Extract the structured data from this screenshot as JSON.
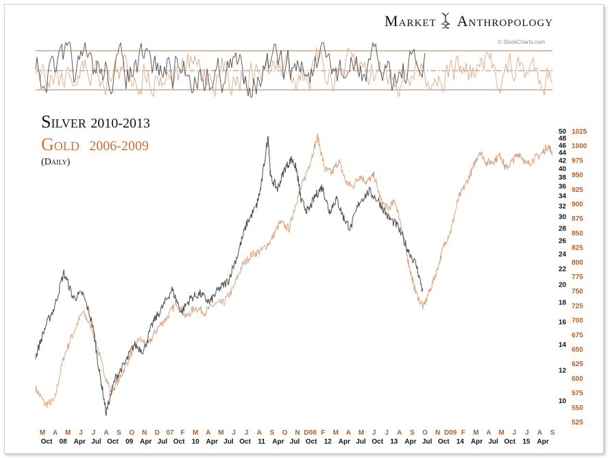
{
  "brand": {
    "word1": "Market",
    "word2": "Anthropology",
    "icon": "dna-helix-icon"
  },
  "credit": "© StockCharts.com",
  "colors": {
    "silver": "#4a4a4a",
    "gold": "#d9a27e",
    "axis_gold": "#b85c22",
    "band": "#b07a50"
  },
  "chart_data": [
    {
      "type": "line",
      "panel": "oscillator",
      "series": [
        {
          "name": "Silver",
          "color": "#5a5a5a"
        },
        {
          "name": "Gold",
          "color": "#e0b090"
        }
      ],
      "reference_lines": [
        "upper",
        "center-dash-dot",
        "lower"
      ],
      "values_shown": "none"
    },
    {
      "type": "line",
      "panel": "price",
      "legend": {
        "silver_name": "Silver",
        "silver_years": "2010-2013",
        "gold_name": "Gold",
        "gold_years": "2006-2009",
        "note": "(Daily)"
      },
      "left_axis_ticks": [
        "50",
        "48",
        "46",
        "44",
        "42",
        "40",
        "38",
        "36",
        "34",
        "32",
        "30",
        "28",
        "26",
        "24",
        "22",
        "20",
        "18",
        "16",
        "14",
        "12",
        "10"
      ],
      "silver_axis_values": [
        50,
        48,
        46,
        44,
        42,
        40,
        38,
        36,
        34,
        32,
        30,
        28,
        26,
        24,
        22,
        20,
        18,
        16,
        14,
        12,
        10
      ],
      "right_axis_ticks": [
        "1025",
        "1000",
        "975",
        "950",
        "925",
        "900",
        "875",
        "850",
        "825",
        "800",
        "775",
        "750",
        "725",
        "700",
        "675",
        "650",
        "625",
        "600",
        "575",
        "550",
        "525"
      ],
      "gold_axis_values": [
        1025,
        1000,
        975,
        950,
        925,
        900,
        875,
        850,
        825,
        800,
        775,
        750,
        725,
        700,
        675,
        650,
        625,
        600,
        575,
        550,
        525
      ],
      "x_top_labels": [
        "M",
        "A",
        "M",
        "J",
        "J",
        "A",
        "S",
        "O",
        "N",
        "D",
        "07",
        "F",
        "M",
        "A",
        "M",
        "J",
        "J",
        "A",
        "S",
        "O",
        "N",
        "D08",
        "F",
        "M",
        "A",
        "M",
        "J",
        "J",
        "A",
        "S",
        "O",
        "N",
        "D09",
        "F",
        "M",
        "A",
        "M",
        "J",
        "J",
        "A",
        "S"
      ],
      "x_bottom_labels": [
        "Oct",
        "08",
        "Apr",
        "Jul",
        "Oct",
        "09",
        "Apr",
        "Jul",
        "Oct",
        "10",
        "Apr",
        "Jul",
        "Oct",
        "11",
        "Apr",
        "Jul",
        "Oct",
        "12",
        "Apr",
        "Jul",
        "Oct",
        "13",
        "Apr",
        "Jul",
        "Oct",
        "14",
        "Apr",
        "Jul",
        "Oct",
        "15",
        "Apr"
      ],
      "silver_path": [
        [
          0,
          13.0
        ],
        [
          0.02,
          15.5
        ],
        [
          0.04,
          17.5
        ],
        [
          0.06,
          21.5
        ],
        [
          0.08,
          18.5
        ],
        [
          0.1,
          19.0
        ],
        [
          0.12,
          16.0
        ],
        [
          0.135,
          12.0
        ],
        [
          0.15,
          9.3
        ],
        [
          0.17,
          11.5
        ],
        [
          0.19,
          12.5
        ],
        [
          0.21,
          14.0
        ],
        [
          0.23,
          13.5
        ],
        [
          0.25,
          16.0
        ],
        [
          0.27,
          17.5
        ],
        [
          0.29,
          19.5
        ],
        [
          0.31,
          17.0
        ],
        [
          0.33,
          18.5
        ],
        [
          0.35,
          19.0
        ],
        [
          0.37,
          18.0
        ],
        [
          0.39,
          19.5
        ],
        [
          0.41,
          20.5
        ],
        [
          0.43,
          24.0
        ],
        [
          0.45,
          29.0
        ],
        [
          0.47,
          32.0
        ],
        [
          0.48,
          36.0
        ],
        [
          0.495,
          48.5
        ],
        [
          0.5,
          38.0
        ],
        [
          0.515,
          35.5
        ],
        [
          0.53,
          40.0
        ],
        [
          0.545,
          42.5
        ],
        [
          0.555,
          40.0
        ],
        [
          0.565,
          33.0
        ],
        [
          0.58,
          31.0
        ],
        [
          0.595,
          34.0
        ],
        [
          0.61,
          36.0
        ],
        [
          0.625,
          31.0
        ],
        [
          0.64,
          33.5
        ],
        [
          0.655,
          30.0
        ],
        [
          0.67,
          28.0
        ],
        [
          0.69,
          33.0
        ],
        [
          0.71,
          35.0
        ],
        [
          0.73,
          33.0
        ],
        [
          0.75,
          30.0
        ],
        [
          0.77,
          28.5
        ],
        [
          0.79,
          25.0
        ],
        [
          0.81,
          22.5
        ],
        [
          0.825,
          19.0
        ]
      ],
      "gold_path": [
        [
          0,
          10.8
        ],
        [
          0.02,
          9.8
        ],
        [
          0.04,
          10.0
        ],
        [
          0.06,
          13.0
        ],
        [
          0.08,
          15.0
        ],
        [
          0.1,
          17.0
        ],
        [
          0.12,
          15.5
        ],
        [
          0.14,
          12.5
        ],
        [
          0.16,
          10.5
        ],
        [
          0.18,
          11.5
        ],
        [
          0.2,
          13.0
        ],
        [
          0.22,
          14.5
        ],
        [
          0.24,
          14.0
        ],
        [
          0.26,
          15.5
        ],
        [
          0.28,
          16.5
        ],
        [
          0.3,
          18.0
        ],
        [
          0.32,
          16.5
        ],
        [
          0.34,
          17.5
        ],
        [
          0.36,
          17.0
        ],
        [
          0.38,
          17.8
        ],
        [
          0.4,
          18.0
        ],
        [
          0.42,
          19.5
        ],
        [
          0.44,
          22.5
        ],
        [
          0.46,
          24.0
        ],
        [
          0.48,
          24.5
        ],
        [
          0.5,
          26.0
        ],
        [
          0.52,
          29.0
        ],
        [
          0.54,
          28.0
        ],
        [
          0.555,
          33.0
        ],
        [
          0.57,
          37.0
        ],
        [
          0.585,
          42.0
        ],
        [
          0.6,
          48.5
        ],
        [
          0.615,
          40.0
        ],
        [
          0.63,
          39.0
        ],
        [
          0.645,
          42.0
        ],
        [
          0.66,
          37.0
        ],
        [
          0.675,
          36.0
        ],
        [
          0.69,
          38.5
        ],
        [
          0.705,
          37.0
        ],
        [
          0.72,
          38.5
        ],
        [
          0.735,
          33.0
        ],
        [
          0.75,
          31.5
        ],
        [
          0.765,
          33.0
        ],
        [
          0.78,
          28.0
        ],
        [
          0.79,
          24.0
        ],
        [
          0.8,
          21.0
        ],
        [
          0.81,
          19.0
        ],
        [
          0.825,
          17.5
        ],
        [
          0.84,
          19.5
        ],
        [
          0.855,
          22.0
        ],
        [
          0.87,
          25.5
        ],
        [
          0.885,
          28.0
        ],
        [
          0.9,
          33.5
        ],
        [
          0.915,
          36.5
        ],
        [
          0.93,
          40.0
        ],
        [
          0.945,
          44.5
        ],
        [
          0.96,
          41.5
        ],
        [
          0.975,
          42.0
        ],
        [
          0.99,
          43.5
        ],
        [
          1.0,
          40.0
        ],
        [
          1.015,
          42.0
        ],
        [
          1.03,
          44.0
        ],
        [
          1.045,
          41.0
        ],
        [
          1.06,
          42.5
        ],
        [
          1.075,
          43.5
        ],
        [
          1.09,
          46.0
        ],
        [
          1.1,
          44.0
        ]
      ]
    }
  ]
}
